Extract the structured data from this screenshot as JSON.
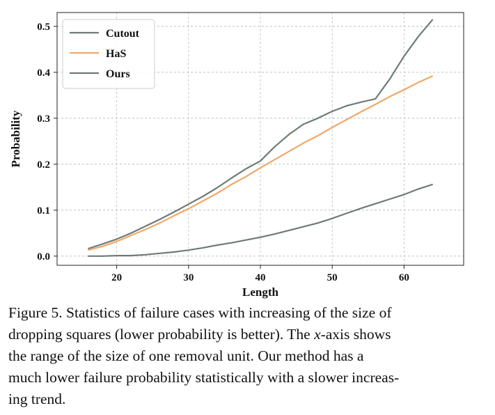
{
  "chart_data": {
    "type": "line",
    "xlabel": "Length",
    "ylabel": "Probability",
    "xlim": [
      11.7,
      68.3
    ],
    "ylim": [
      -0.02,
      0.53
    ],
    "xticks": [
      20,
      30,
      40,
      50,
      60
    ],
    "yticks": [
      0.0,
      0.1,
      0.2,
      0.3,
      0.4,
      0.5
    ],
    "xtick_labels": [
      "20",
      "30",
      "40",
      "50",
      "60"
    ],
    "ytick_labels": [
      "0.0",
      "0.1",
      "0.2",
      "0.3",
      "0.4",
      "0.5"
    ],
    "grid": true,
    "legend_position": "top-left",
    "x": [
      16,
      18,
      20,
      22,
      24,
      26,
      28,
      30,
      32,
      34,
      36,
      38,
      40,
      42,
      44,
      46,
      48,
      50,
      52,
      54,
      56,
      58,
      60,
      62,
      64
    ],
    "series": [
      {
        "name": "Cutout",
        "color": "#6e7b75",
        "values": [
          0.016,
          0.026,
          0.037,
          0.05,
          0.065,
          0.08,
          0.096,
          0.113,
          0.13,
          0.149,
          0.17,
          0.19,
          0.207,
          0.238,
          0.265,
          0.287,
          0.3,
          0.315,
          0.327,
          0.335,
          0.342,
          0.385,
          0.435,
          0.478,
          0.515
        ]
      },
      {
        "name": "HaS",
        "color": "#f0a868",
        "values": [
          0.013,
          0.021,
          0.032,
          0.045,
          0.058,
          0.072,
          0.088,
          0.103,
          0.12,
          0.137,
          0.156,
          0.173,
          0.192,
          0.21,
          0.228,
          0.246,
          0.262,
          0.28,
          0.297,
          0.314,
          0.33,
          0.347,
          0.362,
          0.378,
          0.392
        ]
      },
      {
        "name": "Ours",
        "color": "#6e7b75",
        "values": [
          0.0,
          0.0,
          0.001,
          0.001,
          0.003,
          0.006,
          0.009,
          0.013,
          0.018,
          0.024,
          0.029,
          0.035,
          0.041,
          0.048,
          0.056,
          0.064,
          0.072,
          0.082,
          0.093,
          0.104,
          0.114,
          0.124,
          0.134,
          0.146,
          0.156
        ]
      }
    ]
  },
  "caption": {
    "lines": [
      "Figure 5. Statistics of failure cases with increasing of the size of",
      "dropping squares (lower probability is better). The ",
      "-axis shows",
      "the range of the size of one removal unit.  Our method has a",
      "much lower failure probability statistically with a slower increas-",
      "ing trend."
    ],
    "x_variable": "x"
  }
}
